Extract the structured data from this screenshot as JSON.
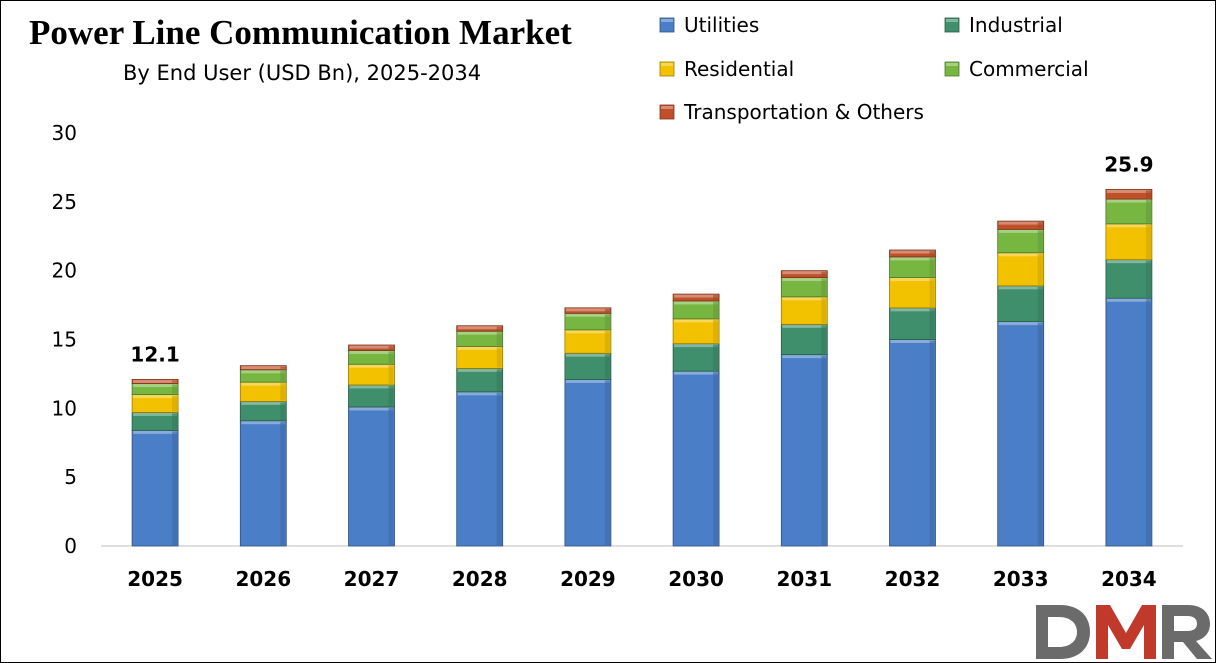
{
  "title": "Power Line Communication Market",
  "subtitle": "By End User (USD Bn), 2025-2034",
  "logo_text": "DMR",
  "colors": {
    "Utilities": "#4a7ec6",
    "Industrial": "#3f8f6c",
    "Residential": "#f2c200",
    "Commercial": "#78b642",
    "Transportation & Others": "#c0502a"
  },
  "chart_data": {
    "type": "bar",
    "stacked": true,
    "categories": [
      "2025",
      "2026",
      "2027",
      "2028",
      "2029",
      "2030",
      "2031",
      "2032",
      "2033",
      "2034"
    ],
    "series": [
      {
        "name": "Utilities",
        "values": [
          8.4,
          9.1,
          10.1,
          11.2,
          12.1,
          12.7,
          13.9,
          15.0,
          16.3,
          18.0
        ]
      },
      {
        "name": "Industrial",
        "values": [
          1.3,
          1.4,
          1.6,
          1.7,
          1.9,
          2.0,
          2.2,
          2.3,
          2.6,
          2.8
        ]
      },
      {
        "name": "Residential",
        "values": [
          1.3,
          1.4,
          1.5,
          1.6,
          1.7,
          1.8,
          2.0,
          2.2,
          2.4,
          2.6
        ]
      },
      {
        "name": "Commercial",
        "values": [
          0.8,
          0.9,
          1.0,
          1.1,
          1.2,
          1.3,
          1.4,
          1.5,
          1.7,
          1.8
        ]
      },
      {
        "name": "Transportation & Others",
        "values": [
          0.3,
          0.3,
          0.4,
          0.4,
          0.4,
          0.5,
          0.5,
          0.5,
          0.6,
          0.7
        ]
      }
    ],
    "data_labels": [
      {
        "category": "2025",
        "text": "12.1"
      },
      {
        "category": "2034",
        "text": "25.9"
      }
    ],
    "ylim": [
      0,
      30
    ],
    "yticks": [
      "0",
      "5",
      "10",
      "15",
      "20",
      "25",
      "30"
    ],
    "grid": false,
    "legend_position": "top-right"
  }
}
